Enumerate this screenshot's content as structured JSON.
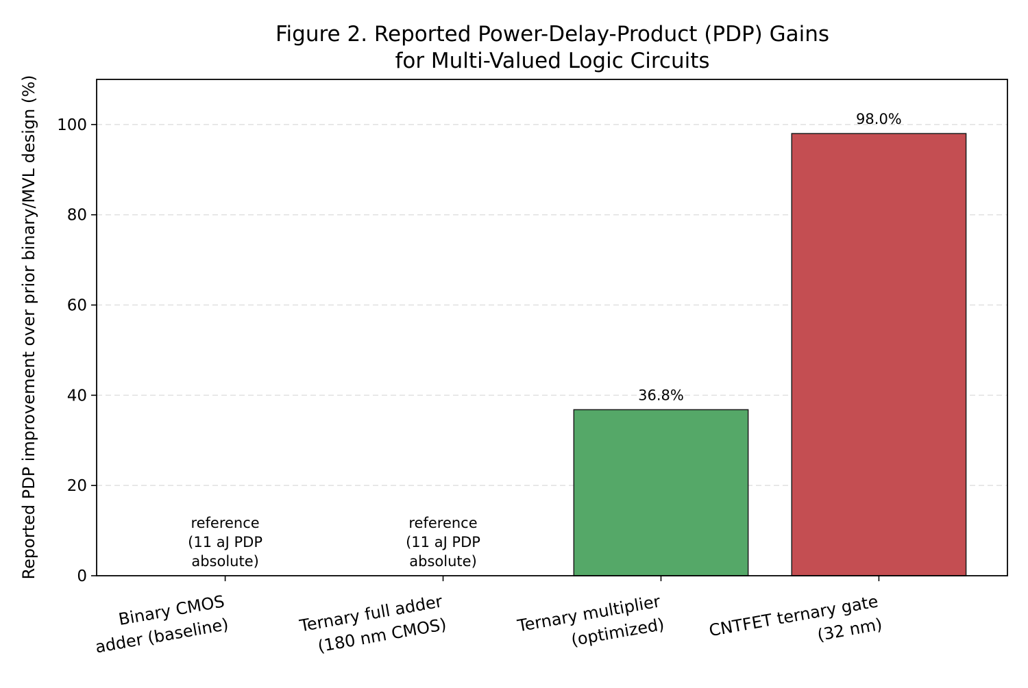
{
  "chart_data": {
    "type": "bar",
    "title_lines": [
      "Figure 2. Reported Power-Delay-Product (PDP) Gains",
      "for Multi-Valued Logic Circuits"
    ],
    "ylabel": "Reported PDP improvement over prior binary/MVL design (%)",
    "xlabel": "",
    "ylim": [
      0,
      110
    ],
    "yticks": [
      0,
      20,
      40,
      60,
      80,
      100
    ],
    "grid": "y-dashed",
    "categories": [
      [
        "Binary CMOS",
        "adder (baseline)"
      ],
      [
        "Ternary full adder",
        "(180 nm CMOS)"
      ],
      [
        "Ternary multiplier",
        "(optimized)"
      ],
      [
        "CNTFET ternary gate",
        "(32 nm)"
      ]
    ],
    "values": [
      0,
      0,
      36.8,
      98.0
    ],
    "colors": [
      "#4c72b0",
      "#4c72b0",
      "#55a868",
      "#c44e52"
    ],
    "data_labels": [
      [
        "reference",
        "(11 aJ PDP",
        "absolute)"
      ],
      [
        "reference",
        "(11 aJ PDP",
        "absolute)"
      ],
      [
        "36.8%"
      ],
      [
        "98.0%"
      ]
    ]
  }
}
